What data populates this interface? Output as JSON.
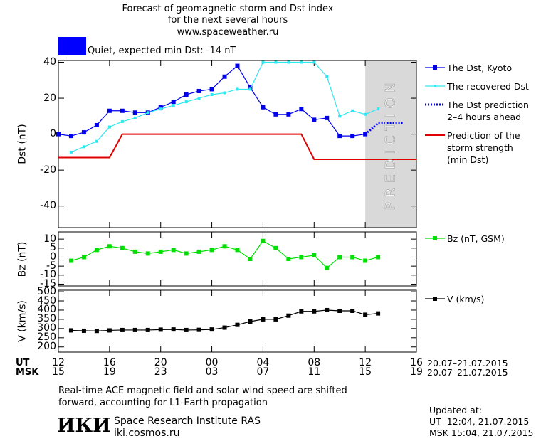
{
  "header": {
    "title_lines": [
      "Forecast of geomagnetic storm and Dst index",
      "for the next several hours",
      "www.spaceweather.ru"
    ],
    "status": "Quiet, expected min Dst: -14 nT",
    "status_color": "#0000ff"
  },
  "chart_data": [
    {
      "type": "line",
      "ylabel": "Dst (nT)",
      "xlim": [
        12,
        40
      ],
      "ylim": [
        -52,
        41
      ],
      "yticks": [
        -40,
        -20,
        0,
        20,
        40
      ],
      "shade_x": [
        36,
        40
      ],
      "shade_label": "PREDICTION",
      "series": [
        {
          "name": "The Dst, Kyoto",
          "color": "#0000ee",
          "marker": "square",
          "style": "solid",
          "x": [
            12,
            13,
            14,
            15,
            16,
            17,
            18,
            19,
            20,
            21,
            22,
            23,
            24,
            25,
            26,
            27,
            28,
            29,
            30,
            31,
            32,
            33,
            34,
            35,
            36
          ],
          "values": [
            0,
            -1,
            1,
            5,
            13,
            13,
            12,
            12,
            15,
            18,
            22,
            24,
            25,
            32,
            38,
            26,
            15,
            11,
            11,
            14,
            8,
            9,
            -1,
            -1,
            0
          ]
        },
        {
          "name": "The recovered Dst",
          "color": "#30e8f0",
          "marker": "small-square",
          "style": "solid",
          "x": [
            13,
            14,
            15,
            16,
            17,
            18,
            19,
            20,
            21,
            22,
            23,
            24,
            25,
            26,
            27,
            28,
            29,
            30,
            31,
            32,
            33,
            34,
            35,
            36,
            37
          ],
          "values": [
            -10,
            -7,
            -4,
            4,
            7,
            9,
            12,
            14,
            16,
            18,
            20,
            22,
            23,
            25,
            25,
            40,
            40,
            40,
            40,
            40,
            32,
            10,
            13,
            11,
            14
          ]
        },
        {
          "name": "The Dst prediction\n2–4 hours ahead",
          "color": "#0000ee",
          "marker": null,
          "style": "dotted",
          "x": [
            36,
            37,
            39
          ],
          "values": [
            0,
            6,
            6
          ]
        },
        {
          "name": "Prediction of the\nstorm strength\n(min Dst)",
          "color": "#e00000",
          "marker": null,
          "style": "solid",
          "x": [
            12,
            16,
            17,
            31,
            32,
            40
          ],
          "values": [
            -13,
            -13,
            0,
            0,
            -14,
            -14
          ]
        }
      ]
    },
    {
      "type": "line",
      "ylabel": "Bz (nT)",
      "xlim": [
        12,
        40
      ],
      "ylim": [
        -16,
        14
      ],
      "yticks": [
        -15,
        -10,
        -5,
        0,
        5,
        10
      ],
      "series": [
        {
          "name": "Bz (nT, GSM)",
          "color": "#00e000",
          "marker": "square",
          "style": "solid",
          "x": [
            13,
            14,
            15,
            16,
            17,
            18,
            19,
            20,
            21,
            22,
            23,
            24,
            25,
            26,
            27,
            28,
            29,
            30,
            31,
            32,
            33,
            34,
            35,
            36,
            37
          ],
          "values": [
            -2,
            0,
            4,
            6,
            5,
            3,
            2,
            3,
            4,
            2,
            3,
            4,
            6,
            4,
            -1,
            9,
            5,
            -1,
            0,
            1,
            -6,
            0,
            0,
            -2,
            0
          ]
        }
      ]
    },
    {
      "type": "line",
      "ylabel": "V (km/s)",
      "xlim": [
        12,
        40
      ],
      "ylim": [
        172,
        508
      ],
      "yticks": [
        200,
        250,
        300,
        350,
        400,
        450,
        500
      ],
      "xticks": [
        12,
        16,
        20,
        {
          "value": 24,
          "label": "00"
        },
        {
          "value": 28,
          "label": "04"
        },
        {
          "value": 32,
          "label": "08"
        },
        {
          "value": 36,
          "label": "12"
        },
        {
          "value": 40,
          "label": "16"
        }
      ],
      "xlabel": "UT",
      "xdate": "20.07–21.07.2015",
      "msk_ticks": [
        {
          "value": 12,
          "label": "15"
        },
        {
          "value": 16,
          "label": "19"
        },
        {
          "value": 20,
          "label": "23"
        },
        {
          "value": 24,
          "label": "03"
        },
        {
          "value": 28,
          "label": "07"
        },
        {
          "value": 32,
          "label": "11"
        },
        {
          "value": 36,
          "label": "15"
        },
        {
          "value": 40,
          "label": "19"
        }
      ],
      "msk_label": "MSK",
      "msk_date": "20.07–21.07.2015",
      "series": [
        {
          "name": "V (km/s)",
          "color": "#000000",
          "marker": "square",
          "style": "solid",
          "x": [
            13,
            14,
            15,
            16,
            17,
            18,
            19,
            20,
            21,
            22,
            23,
            24,
            25,
            26,
            27,
            28,
            29,
            30,
            31,
            32,
            33,
            34,
            35,
            36,
            37
          ],
          "values": [
            290,
            288,
            287,
            290,
            292,
            292,
            292,
            294,
            295,
            292,
            293,
            295,
            305,
            320,
            338,
            350,
            350,
            370,
            393,
            393,
            400,
            396,
            396,
            375,
            382
          ]
        }
      ]
    }
  ],
  "footer": {
    "note": "Real-time ACE magnetic field and solar wind speed are shifted\nforward, accounting for L1-Earth propagation",
    "logo": "ИКИ",
    "institute": "Space Research Institute RAS",
    "site": "iki.cosmos.ru",
    "updated_title": "Updated at:",
    "updated_ut": "UT  12:04, 21.07.2015",
    "updated_msk": "MSK 15:04, 21.07.2015"
  }
}
